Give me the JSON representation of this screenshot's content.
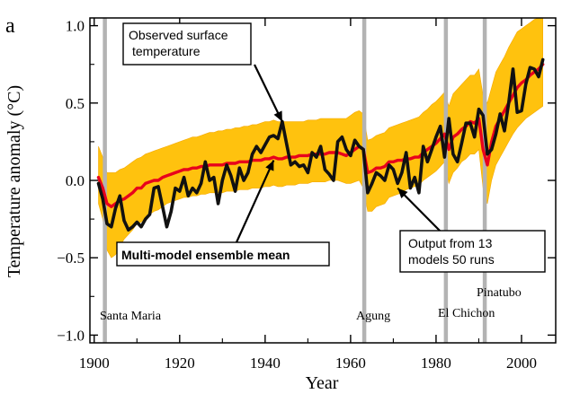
{
  "panel_label": "a",
  "chart_data": {
    "type": "line",
    "title": "",
    "xlabel": "Year",
    "ylabel": "Temperature anomaly (°C)",
    "xlim": [
      1899,
      2008
    ],
    "ylim": [
      -1.05,
      1.05
    ],
    "x_ticks": [
      1900,
      1920,
      1940,
      1960,
      1980,
      2000
    ],
    "y_ticks": [
      -1.0,
      -0.5,
      0.0,
      0.5,
      1.0
    ],
    "y_tick_labels": [
      "−1.0",
      "−0.5",
      "0.0",
      "0.5",
      "1.0"
    ],
    "grid": false,
    "volcanic_eruptions": [
      {
        "name": "Santa Maria",
        "year": 1902.5
      },
      {
        "name": "Agung",
        "year": 1963.2
      },
      {
        "name": "El Chichon",
        "year": 1982.3
      },
      {
        "name": "Pinatubo",
        "year": 1991.4
      }
    ],
    "series": [
      {
        "name": "Observed surface temperature",
        "color": "#111111",
        "x": [
          1901,
          1902,
          1903,
          1904,
          1905,
          1906,
          1907,
          1908,
          1909,
          1910,
          1911,
          1912,
          1913,
          1914,
          1915,
          1916,
          1917,
          1918,
          1919,
          1920,
          1921,
          1922,
          1923,
          1924,
          1925,
          1926,
          1927,
          1928,
          1929,
          1930,
          1931,
          1932,
          1933,
          1934,
          1935,
          1936,
          1937,
          1938,
          1939,
          1940,
          1941,
          1942,
          1943,
          1944,
          1945,
          1946,
          1947,
          1948,
          1949,
          1950,
          1951,
          1952,
          1953,
          1954,
          1955,
          1956,
          1957,
          1958,
          1959,
          1960,
          1961,
          1962,
          1963,
          1964,
          1965,
          1966,
          1967,
          1968,
          1969,
          1970,
          1971,
          1972,
          1973,
          1974,
          1975,
          1976,
          1977,
          1978,
          1979,
          1980,
          1981,
          1982,
          1983,
          1984,
          1985,
          1986,
          1987,
          1988,
          1989,
          1990,
          1991,
          1992,
          1993,
          1994,
          1995,
          1996,
          1997,
          1998,
          1999,
          2000,
          2001,
          2002,
          2003,
          2004,
          2005
        ],
        "values": [
          -0.02,
          -0.12,
          -0.28,
          -0.3,
          -0.18,
          -0.1,
          -0.26,
          -0.32,
          -0.3,
          -0.27,
          -0.3,
          -0.25,
          -0.22,
          -0.05,
          -0.04,
          -0.17,
          -0.3,
          -0.2,
          -0.05,
          -0.07,
          0.02,
          -0.1,
          -0.05,
          -0.08,
          -0.02,
          0.12,
          0.0,
          0.02,
          -0.15,
          0.0,
          0.1,
          0.03,
          -0.07,
          0.08,
          0.0,
          0.05,
          0.17,
          0.22,
          0.18,
          0.23,
          0.28,
          0.29,
          0.27,
          0.38,
          0.24,
          0.1,
          0.12,
          0.09,
          0.1,
          0.05,
          0.18,
          0.15,
          0.22,
          0.07,
          0.04,
          0.0,
          0.25,
          0.28,
          0.2,
          0.16,
          0.26,
          0.22,
          0.2,
          -0.08,
          -0.02,
          0.05,
          0.03,
          0.0,
          0.1,
          0.07,
          -0.02,
          0.05,
          0.18,
          -0.05,
          0.02,
          -0.08,
          0.22,
          0.12,
          0.2,
          0.28,
          0.35,
          0.15,
          0.4,
          0.17,
          0.12,
          0.24,
          0.37,
          0.37,
          0.28,
          0.46,
          0.42,
          0.17,
          0.2,
          0.3,
          0.43,
          0.32,
          0.5,
          0.72,
          0.44,
          0.45,
          0.62,
          0.73,
          0.72,
          0.67,
          0.78
        ]
      },
      {
        "name": "Multi-model ensemble mean",
        "color": "#e8001c",
        "x": [
          1901,
          1902,
          1903,
          1904,
          1905,
          1906,
          1907,
          1908,
          1909,
          1910,
          1911,
          1912,
          1913,
          1914,
          1915,
          1916,
          1917,
          1918,
          1919,
          1920,
          1921,
          1922,
          1923,
          1924,
          1925,
          1926,
          1927,
          1928,
          1929,
          1930,
          1931,
          1932,
          1933,
          1934,
          1935,
          1936,
          1937,
          1938,
          1939,
          1940,
          1941,
          1942,
          1943,
          1944,
          1945,
          1946,
          1947,
          1948,
          1949,
          1950,
          1951,
          1952,
          1953,
          1954,
          1955,
          1956,
          1957,
          1958,
          1959,
          1960,
          1961,
          1962,
          1963,
          1964,
          1965,
          1966,
          1967,
          1968,
          1969,
          1970,
          1971,
          1972,
          1973,
          1974,
          1975,
          1976,
          1977,
          1978,
          1979,
          1980,
          1981,
          1982,
          1983,
          1984,
          1985,
          1986,
          1987,
          1988,
          1989,
          1990,
          1991,
          1992,
          1993,
          1994,
          1995,
          1996,
          1997,
          1998,
          1999,
          2000,
          2001,
          2002,
          2003,
          2004,
          2005
        ],
        "values": [
          0.02,
          -0.05,
          -0.15,
          -0.17,
          -0.15,
          -0.13,
          -0.12,
          -0.1,
          -0.08,
          -0.05,
          -0.05,
          -0.02,
          -0.01,
          0.0,
          0.0,
          0.02,
          0.03,
          0.04,
          0.05,
          0.06,
          0.07,
          0.07,
          0.08,
          0.08,
          0.09,
          0.09,
          0.1,
          0.1,
          0.1,
          0.1,
          0.11,
          0.11,
          0.11,
          0.12,
          0.12,
          0.12,
          0.13,
          0.13,
          0.13,
          0.14,
          0.14,
          0.15,
          0.14,
          0.14,
          0.15,
          0.15,
          0.15,
          0.16,
          0.16,
          0.16,
          0.17,
          0.17,
          0.17,
          0.17,
          0.18,
          0.18,
          0.18,
          0.17,
          0.16,
          0.18,
          0.2,
          0.22,
          0.2,
          0.05,
          0.06,
          0.08,
          0.08,
          0.09,
          0.12,
          0.12,
          0.13,
          0.13,
          0.14,
          0.14,
          0.15,
          0.15,
          0.18,
          0.2,
          0.22,
          0.24,
          0.27,
          0.3,
          0.2,
          0.28,
          0.3,
          0.33,
          0.35,
          0.38,
          0.37,
          0.4,
          0.2,
          0.1,
          0.25,
          0.35,
          0.4,
          0.45,
          0.5,
          0.55,
          0.6,
          0.63,
          0.65,
          0.68,
          0.7,
          0.72,
          0.75
        ]
      },
      {
        "name": "Output from 13 models 50 runs",
        "color": "#ffc20e",
        "note": "spread band around ensemble mean",
        "x": [
          1901,
          1902,
          1903,
          1904,
          1905,
          1906,
          1907,
          1908,
          1909,
          1910,
          1911,
          1912,
          1913,
          1914,
          1915,
          1916,
          1917,
          1918,
          1919,
          1920,
          1921,
          1922,
          1923,
          1924,
          1925,
          1926,
          1927,
          1928,
          1929,
          1930,
          1931,
          1932,
          1933,
          1934,
          1935,
          1936,
          1937,
          1938,
          1939,
          1940,
          1941,
          1942,
          1943,
          1944,
          1945,
          1946,
          1947,
          1948,
          1949,
          1950,
          1951,
          1952,
          1953,
          1954,
          1955,
          1956,
          1957,
          1958,
          1959,
          1960,
          1961,
          1962,
          1963,
          1964,
          1965,
          1966,
          1967,
          1968,
          1969,
          1970,
          1971,
          1972,
          1973,
          1974,
          1975,
          1976,
          1977,
          1978,
          1979,
          1980,
          1981,
          1982,
          1983,
          1984,
          1985,
          1986,
          1987,
          1988,
          1989,
          1990,
          1991,
          1992,
          1993,
          1994,
          1995,
          1996,
          1997,
          1998,
          1999,
          2000,
          2001,
          2002,
          2003,
          2004,
          2005
        ],
        "upper": [
          0.22,
          0.15,
          0.05,
          0.05,
          0.05,
          0.07,
          0.08,
          0.1,
          0.12,
          0.14,
          0.15,
          0.17,
          0.18,
          0.19,
          0.2,
          0.21,
          0.22,
          0.23,
          0.24,
          0.25,
          0.26,
          0.27,
          0.28,
          0.28,
          0.29,
          0.3,
          0.31,
          0.31,
          0.32,
          0.32,
          0.33,
          0.33,
          0.34,
          0.34,
          0.35,
          0.35,
          0.36,
          0.36,
          0.37,
          0.38,
          0.38,
          0.39,
          0.38,
          0.38,
          0.38,
          0.38,
          0.38,
          0.38,
          0.38,
          0.39,
          0.39,
          0.39,
          0.4,
          0.4,
          0.4,
          0.4,
          0.4,
          0.4,
          0.4,
          0.42,
          0.44,
          0.45,
          0.43,
          0.26,
          0.27,
          0.29,
          0.3,
          0.31,
          0.34,
          0.35,
          0.36,
          0.37,
          0.38,
          0.39,
          0.4,
          0.41,
          0.44,
          0.46,
          0.49,
          0.51,
          0.54,
          0.57,
          0.48,
          0.56,
          0.59,
          0.62,
          0.65,
          0.68,
          0.68,
          0.72,
          0.55,
          0.5,
          0.6,
          0.7,
          0.75,
          0.8,
          0.86,
          0.91,
          0.96,
          0.98,
          1.0,
          1.02,
          1.04,
          1.05,
          1.05
        ],
        "lower": [
          -0.15,
          -0.25,
          -0.45,
          -0.5,
          -0.48,
          -0.43,
          -0.38,
          -0.35,
          -0.32,
          -0.28,
          -0.27,
          -0.24,
          -0.22,
          -0.2,
          -0.19,
          -0.17,
          -0.15,
          -0.14,
          -0.13,
          -0.12,
          -0.11,
          -0.11,
          -0.1,
          -0.1,
          -0.09,
          -0.09,
          -0.08,
          -0.08,
          -0.08,
          -0.08,
          -0.07,
          -0.07,
          -0.07,
          -0.06,
          -0.06,
          -0.06,
          -0.05,
          -0.05,
          -0.05,
          -0.04,
          -0.04,
          -0.03,
          -0.04,
          -0.04,
          -0.03,
          -0.03,
          -0.03,
          -0.02,
          -0.02,
          -0.02,
          -0.01,
          -0.01,
          -0.01,
          -0.01,
          0.0,
          0.0,
          0.0,
          -0.01,
          -0.02,
          -0.02,
          -0.01,
          0.0,
          -0.05,
          -0.2,
          -0.2,
          -0.17,
          -0.16,
          -0.15,
          -0.11,
          -0.1,
          -0.09,
          -0.08,
          -0.06,
          -0.05,
          -0.04,
          -0.03,
          0.0,
          0.02,
          0.04,
          0.06,
          0.09,
          0.12,
          -0.02,
          0.05,
          0.08,
          0.12,
          0.14,
          0.17,
          0.17,
          0.2,
          -0.05,
          -0.15,
          0.0,
          0.1,
          0.15,
          0.2,
          0.25,
          0.3,
          0.34,
          0.37,
          0.4,
          0.42,
          0.44,
          0.46,
          0.48
        ]
      }
    ],
    "annotations": [
      {
        "text_lines": [
          "Observed surface",
          "temperature"
        ],
        "box": true,
        "points_to_year": 1944,
        "points_to_value": 0.38
      },
      {
        "text_lines": [
          "Multi-model ensemble mean"
        ],
        "box": true,
        "bold": true,
        "points_to_year": 1942,
        "points_to_value": 0.13
      },
      {
        "text_lines": [
          "Output from 13",
          "models 50 runs"
        ],
        "box": true,
        "points_to_year": 1971,
        "points_to_value": -0.05
      }
    ]
  }
}
